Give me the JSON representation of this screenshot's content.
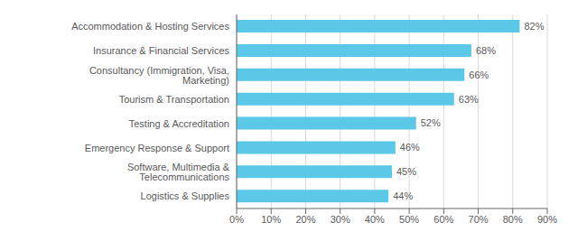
{
  "chart_data": {
    "type": "bar",
    "orientation": "horizontal",
    "categories": [
      "Logistics & Supplies",
      "Software, Multimedia & Telecommunications",
      "Emergency Response & Support",
      "Testing & Accreditation",
      "Tourism & Transportation",
      "Consultancy (Immigration, Visa, Marketing)",
      "Insurance & Financial Services",
      "Accommodation & Hosting Services"
    ],
    "values": [
      44,
      45,
      46,
      52,
      63,
      66,
      68,
      82
    ],
    "value_labels": [
      "44%",
      "45%",
      "46%",
      "52%",
      "63%",
      "66%",
      "68%",
      "82%"
    ],
    "data_labels": true,
    "color": "#5bc8e8",
    "xlim": [
      0,
      90
    ],
    "xticks": [
      {
        "value": 0,
        "label": "0%"
      },
      {
        "value": 10,
        "label": "10%"
      },
      {
        "value": 20,
        "label": "20%"
      },
      {
        "value": 30,
        "label": "30%"
      },
      {
        "value": 40,
        "label": "40%"
      },
      {
        "value": 50,
        "label": "50%"
      },
      {
        "value": 60,
        "label": "60%"
      },
      {
        "value": 70,
        "label": "70%"
      },
      {
        "value": 80,
        "label": "80%"
      },
      {
        "value": 90,
        "label": "90%"
      }
    ],
    "grid": true
  }
}
